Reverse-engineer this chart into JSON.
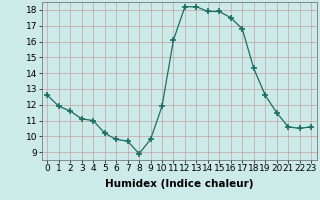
{
  "x": [
    0,
    1,
    2,
    3,
    4,
    5,
    6,
    7,
    8,
    9,
    10,
    11,
    12,
    13,
    14,
    15,
    16,
    17,
    18,
    19,
    20,
    21,
    22,
    23
  ],
  "y": [
    12.6,
    11.9,
    11.6,
    11.1,
    11.0,
    10.2,
    9.8,
    9.7,
    8.9,
    9.8,
    11.9,
    16.1,
    18.2,
    18.2,
    17.9,
    17.9,
    17.5,
    16.8,
    14.3,
    12.6,
    11.5,
    10.6,
    10.5,
    10.6
  ],
  "line_color": "#1a6e62",
  "marker": "+",
  "marker_size": 4,
  "bg_color": "#cceae7",
  "grid_color": "#c4a0a0",
  "xlabel": "Humidex (Indice chaleur)",
  "xlabel_fontsize": 7.5,
  "xlim": [
    -0.5,
    23.5
  ],
  "ylim": [
    8.5,
    18.5
  ],
  "yticks": [
    9,
    10,
    11,
    12,
    13,
    14,
    15,
    16,
    17,
    18
  ],
  "xticks": [
    0,
    1,
    2,
    3,
    4,
    5,
    6,
    7,
    8,
    9,
    10,
    11,
    12,
    13,
    14,
    15,
    16,
    17,
    18,
    19,
    20,
    21,
    22,
    23
  ],
  "tick_fontsize": 6.5
}
